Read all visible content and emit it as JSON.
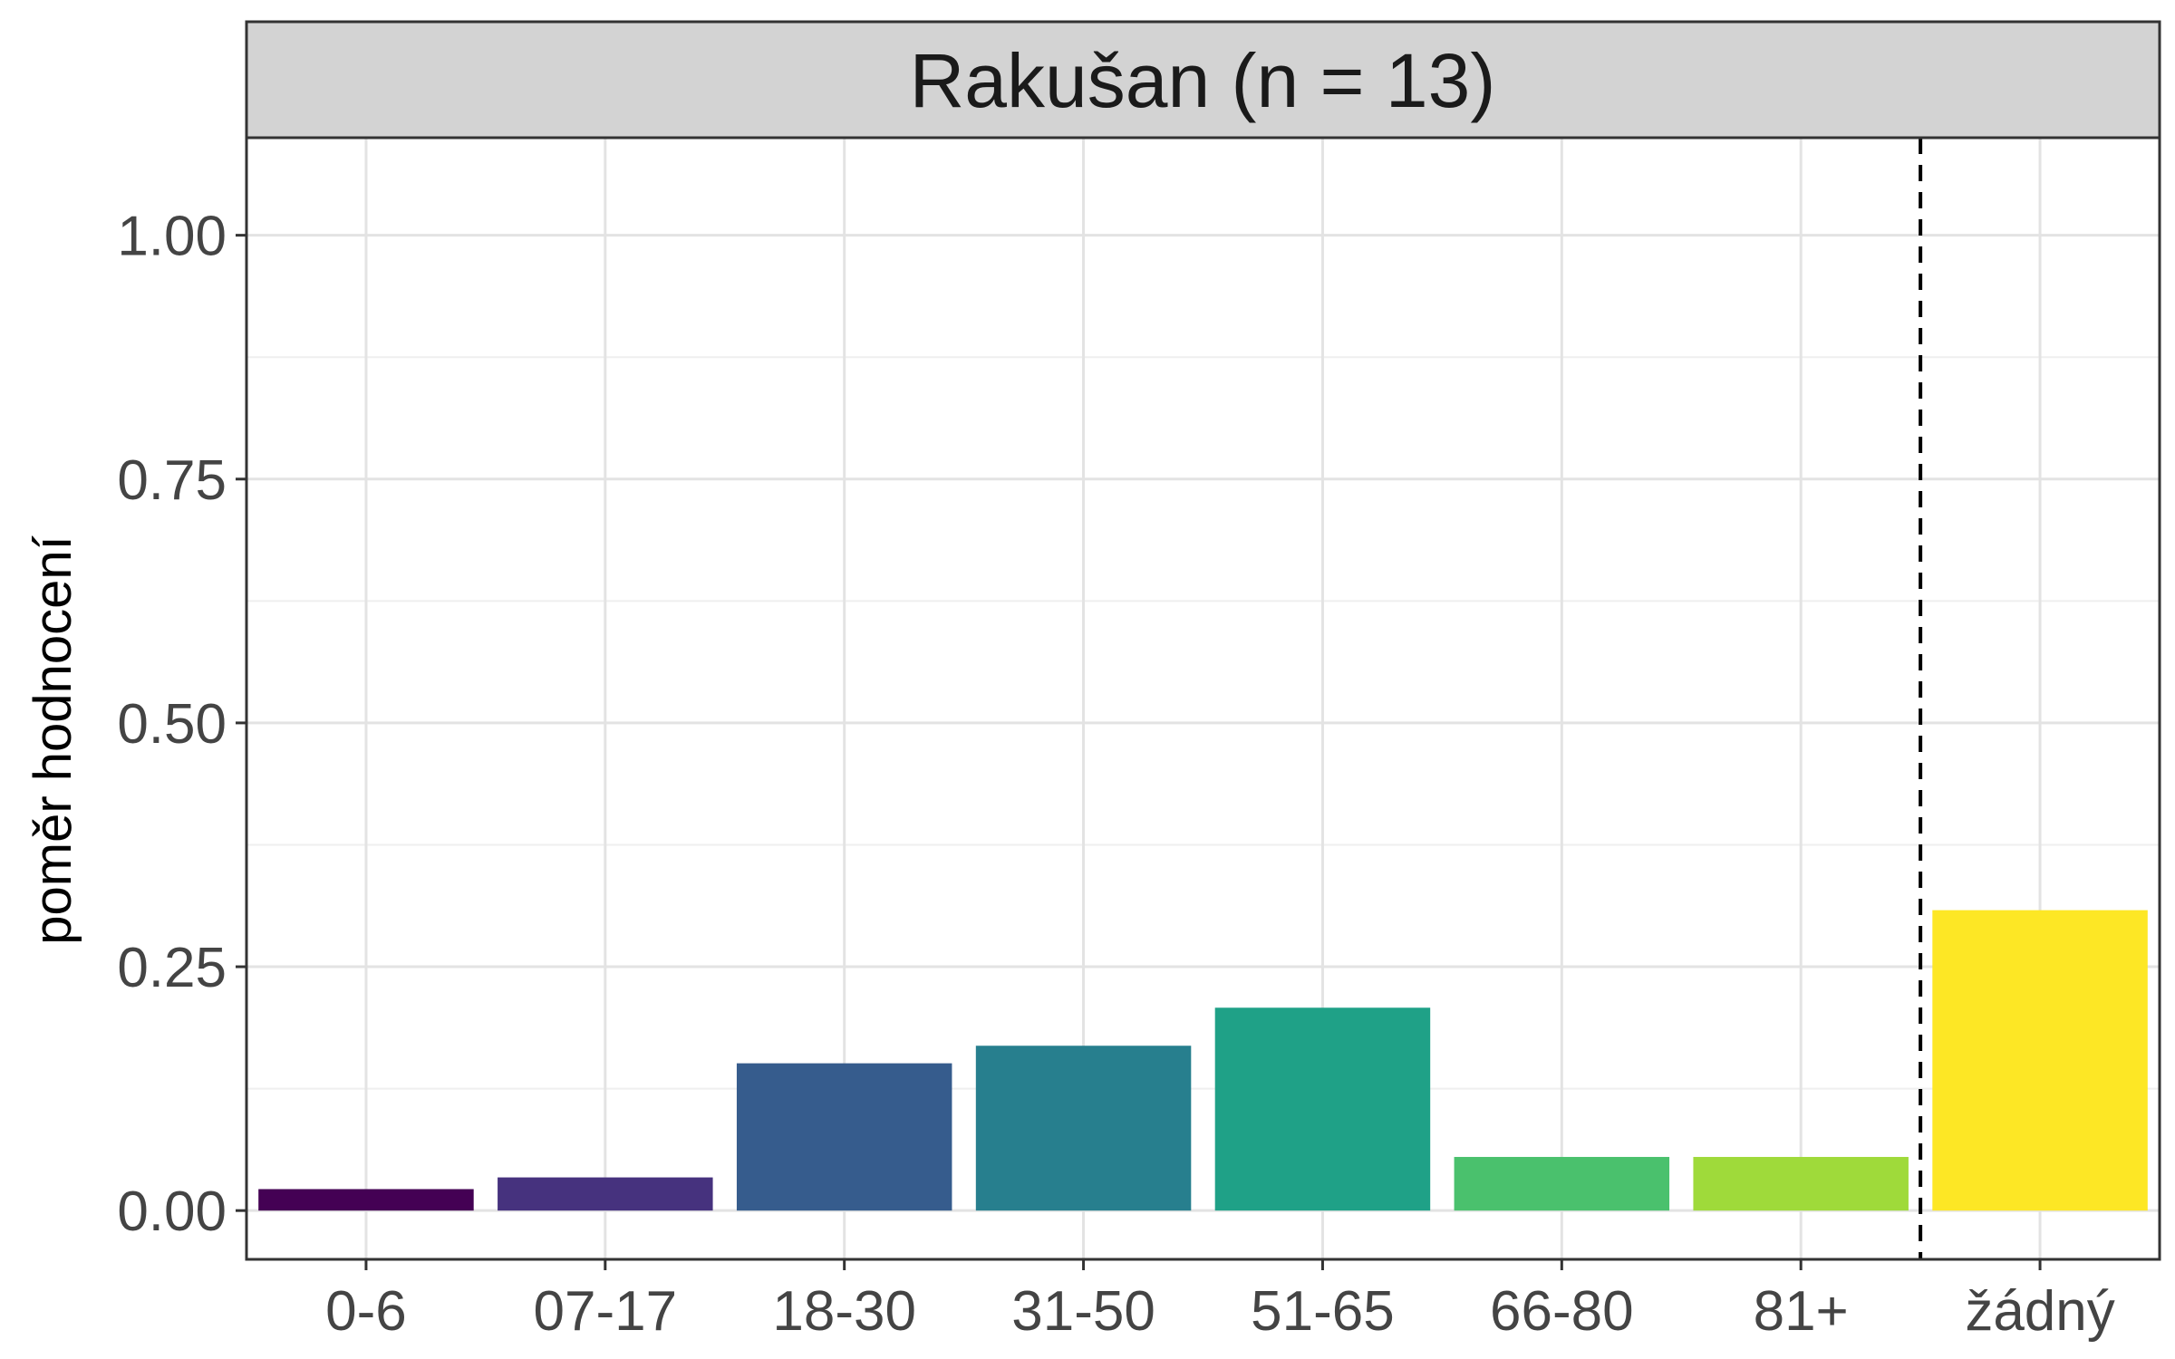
{
  "chart_data": {
    "type": "bar",
    "facet_title": "Rakušan (n = 13)",
    "ylabel": "poměr hodnocení",
    "xlabel": "",
    "categories": [
      "0-6",
      "07-17",
      "18-30",
      "31-50",
      "51-65",
      "66-80",
      "81+",
      "žádný"
    ],
    "values": [
      0.022,
      0.034,
      0.151,
      0.169,
      0.208,
      0.055,
      0.055,
      0.308
    ],
    "colors": [
      "#440154",
      "#46327E",
      "#365C8D",
      "#277F8E",
      "#1FA187",
      "#4AC16D",
      "#9FDA3A",
      "#FDE725"
    ],
    "ylim": [
      -0.05,
      1.1
    ],
    "yticks": [
      0.0,
      0.25,
      0.5,
      0.75,
      1.0
    ],
    "ytick_labels": [
      "0.00",
      "0.25",
      "0.50",
      "0.75",
      "1.00"
    ],
    "separator": {
      "between": [
        "81+",
        "žádný"
      ],
      "style": "dashed"
    },
    "grid": true,
    "legend": false
  }
}
